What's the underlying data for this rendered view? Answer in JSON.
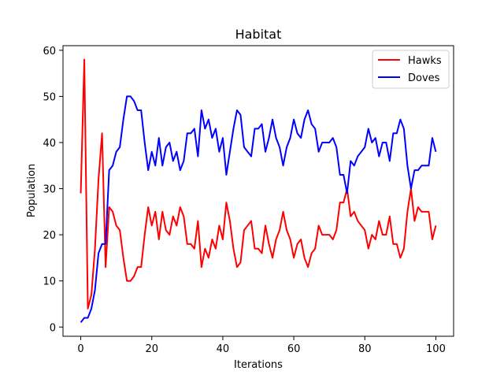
{
  "chart_data": {
    "type": "line",
    "title": "Habitat",
    "xlabel": "Iterations",
    "ylabel": "Population",
    "xlim": [
      -5,
      105
    ],
    "ylim": [
      -2,
      61
    ],
    "xticks": [
      0,
      20,
      40,
      60,
      80,
      100
    ],
    "yticks": [
      0,
      10,
      20,
      30,
      40,
      50,
      60
    ],
    "legend_position": "top-right",
    "grid": false,
    "series": [
      {
        "name": "Hawks",
        "color": "#ff0000",
        "values": [
          29,
          58,
          4,
          7,
          17,
          32,
          42,
          13,
          26,
          25,
          22,
          21,
          15,
          10,
          10,
          11,
          13,
          13,
          20,
          26,
          22,
          25,
          19,
          25,
          21,
          20,
          24,
          22,
          26,
          24,
          18,
          18,
          17,
          23,
          13,
          17,
          15,
          19,
          17,
          22,
          19,
          27,
          23,
          17,
          13,
          14,
          21,
          22,
          23,
          17,
          17,
          16,
          22,
          18,
          15,
          19,
          21,
          25,
          21,
          19,
          15,
          18,
          19,
          15,
          13,
          16,
          17,
          22,
          20,
          20,
          20,
          19,
          21,
          27,
          27,
          30,
          24,
          25,
          23,
          22,
          21,
          17,
          20,
          19,
          23,
          20,
          20,
          24,
          18,
          18,
          15,
          17,
          25,
          30,
          23,
          26,
          25,
          25,
          25,
          19,
          22
        ]
      },
      {
        "name": "Doves",
        "color": "#0000ff",
        "values": [
          1,
          2,
          2,
          4,
          8,
          16,
          18,
          18,
          34,
          35,
          38,
          39,
          45,
          50,
          50,
          49,
          47,
          47,
          40,
          34,
          38,
          35,
          41,
          35,
          39,
          40,
          36,
          38,
          34,
          36,
          42,
          42,
          43,
          37,
          47,
          43,
          45,
          41,
          43,
          38,
          41,
          33,
          38,
          43,
          47,
          46,
          39,
          38,
          37,
          43,
          43,
          44,
          38,
          41,
          45,
          41,
          39,
          35,
          39,
          41,
          45,
          42,
          41,
          45,
          47,
          44,
          43,
          38,
          40,
          40,
          40,
          41,
          39,
          33,
          33,
          29,
          36,
          35,
          37,
          38,
          39,
          43,
          40,
          41,
          37,
          40,
          40,
          36,
          42,
          42,
          45,
          43,
          35,
          30,
          34,
          34,
          35,
          35,
          35,
          41,
          38
        ]
      }
    ]
  }
}
